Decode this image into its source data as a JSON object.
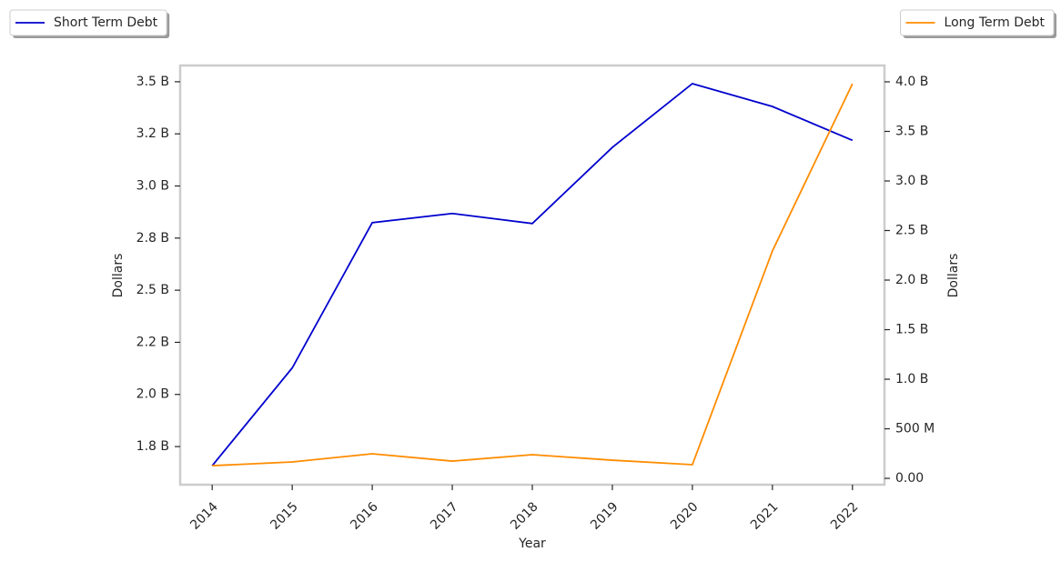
{
  "chart_data": {
    "type": "line",
    "x": [
      2014,
      2015,
      2016,
      2017,
      2018,
      2019,
      2020,
      2021,
      2022
    ],
    "xlim": [
      2013.6,
      2022.4
    ],
    "xticks": [
      2014,
      2015,
      2016,
      2017,
      2018,
      2019,
      2020,
      2021,
      2022
    ],
    "xlabel": "Year",
    "ylabel": "Dollars",
    "y2label": "Dollars",
    "ylim": [
      1567000000,
      3578000000
    ],
    "yticks": [
      {
        "value": 1750000000,
        "label": "1.8 B"
      },
      {
        "value": 2000000000,
        "label": "2.0 B"
      },
      {
        "value": 2250000000,
        "label": "2.2 B"
      },
      {
        "value": 2500000000,
        "label": "2.5 B"
      },
      {
        "value": 2750000000,
        "label": "2.8 B"
      },
      {
        "value": 3000000000,
        "label": "3.0 B"
      },
      {
        "value": 3250000000,
        "label": "3.2 B"
      },
      {
        "value": 3500000000,
        "label": "3.5 B"
      }
    ],
    "y2lim": [
      -64000000,
      4165000000
    ],
    "y2ticks": [
      {
        "value": 0,
        "label": "0.00"
      },
      {
        "value": 500000000,
        "label": "500 M"
      },
      {
        "value": 1000000000,
        "label": "1.0 B"
      },
      {
        "value": 1500000000,
        "label": "1.5 B"
      },
      {
        "value": 2000000000,
        "label": "2.0 B"
      },
      {
        "value": 2500000000,
        "label": "2.5 B"
      },
      {
        "value": 3000000000,
        "label": "3.0 B"
      },
      {
        "value": 3500000000,
        "label": "3.5 B"
      },
      {
        "value": 4000000000,
        "label": "4.0 B"
      }
    ],
    "grid": false,
    "series": [
      {
        "name": "Short Term Debt",
        "color": "#0000cd",
        "axis": "y",
        "legend": "upper left",
        "values": [
          1658000000,
          2127000000,
          2824000000,
          2868000000,
          2820000000,
          3185000000,
          3491000000,
          3381000000,
          3219000000
        ]
      },
      {
        "name": "Long Term Debt",
        "color": "#ff8c00",
        "axis": "y2",
        "legend": "upper right",
        "values": [
          128000000,
          165000000,
          248000000,
          174000000,
          239000000,
          183000000,
          138000000,
          2294000000,
          3980000000
        ]
      }
    ]
  }
}
